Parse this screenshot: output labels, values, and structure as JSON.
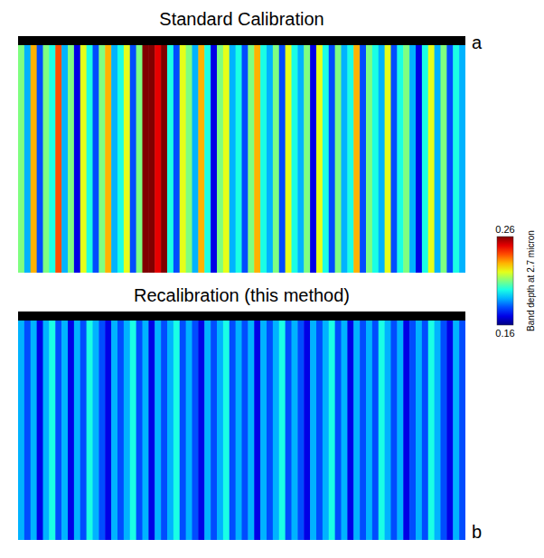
{
  "chart_data": [
    {
      "type": "heatmap",
      "title": "Standard Calibration",
      "panel": "a",
      "tick_labels": false,
      "cells": [
        [
          0.21,
          0.19,
          0.23,
          0.18,
          0.21,
          0.2,
          0.24,
          0.19,
          0.21,
          0.17,
          0.22,
          0.2,
          0.18,
          0.21,
          0.23,
          0.19,
          0.2,
          0.22,
          0.18,
          0.21,
          0.26,
          0.26,
          0.25,
          0.26,
          0.2,
          0.18,
          0.22,
          0.21,
          0.19,
          0.23,
          0.2,
          0.17,
          0.21,
          0.22,
          0.19,
          0.2,
          0.18,
          0.21,
          0.23,
          0.2,
          0.19,
          0.21,
          0.18,
          0.22,
          0.2,
          0.19,
          0.21,
          0.17,
          0.22,
          0.2,
          0.18,
          0.21,
          0.19,
          0.2,
          0.23,
          0.18,
          0.21,
          0.2,
          0.19,
          0.22,
          0.18,
          0.2,
          0.21,
          0.19,
          0.17,
          0.2,
          0.22,
          0.19,
          0.21,
          0.18,
          0.2,
          0.19
        ]
      ],
      "colorbar_range": [
        0.16,
        0.26
      ],
      "colorbar_ticks": [
        0.16,
        0.26
      ],
      "colorbar_label": "Band depth at 2.7 micron"
    },
    {
      "type": "heatmap",
      "title": "Recalibration (this method)",
      "panel": "b",
      "tick_labels": false,
      "cells": [
        [
          0.19,
          0.18,
          0.19,
          0.17,
          0.19,
          0.2,
          0.18,
          0.19,
          0.17,
          0.19,
          0.18,
          0.2,
          0.19,
          0.18,
          0.17,
          0.19,
          0.18,
          0.19,
          0.2,
          0.18,
          0.19,
          0.17,
          0.19,
          0.18,
          0.19,
          0.2,
          0.18,
          0.19,
          0.18,
          0.17,
          0.19,
          0.18,
          0.19,
          0.2,
          0.18,
          0.19,
          0.18,
          0.19,
          0.17,
          0.19,
          0.18,
          0.19,
          0.2,
          0.18,
          0.19,
          0.18,
          0.17,
          0.19,
          0.18,
          0.19,
          0.2,
          0.18,
          0.19,
          0.17,
          0.19,
          0.18,
          0.19,
          0.18,
          0.2,
          0.19,
          0.18,
          0.19,
          0.17,
          0.18,
          0.19,
          0.18,
          0.2,
          0.19,
          0.18,
          0.17,
          0.19,
          0.18
        ]
      ],
      "colorbar_range": [
        0.16,
        0.26
      ],
      "colorbar_ticks": [
        0.16,
        0.26
      ]
    }
  ]
}
